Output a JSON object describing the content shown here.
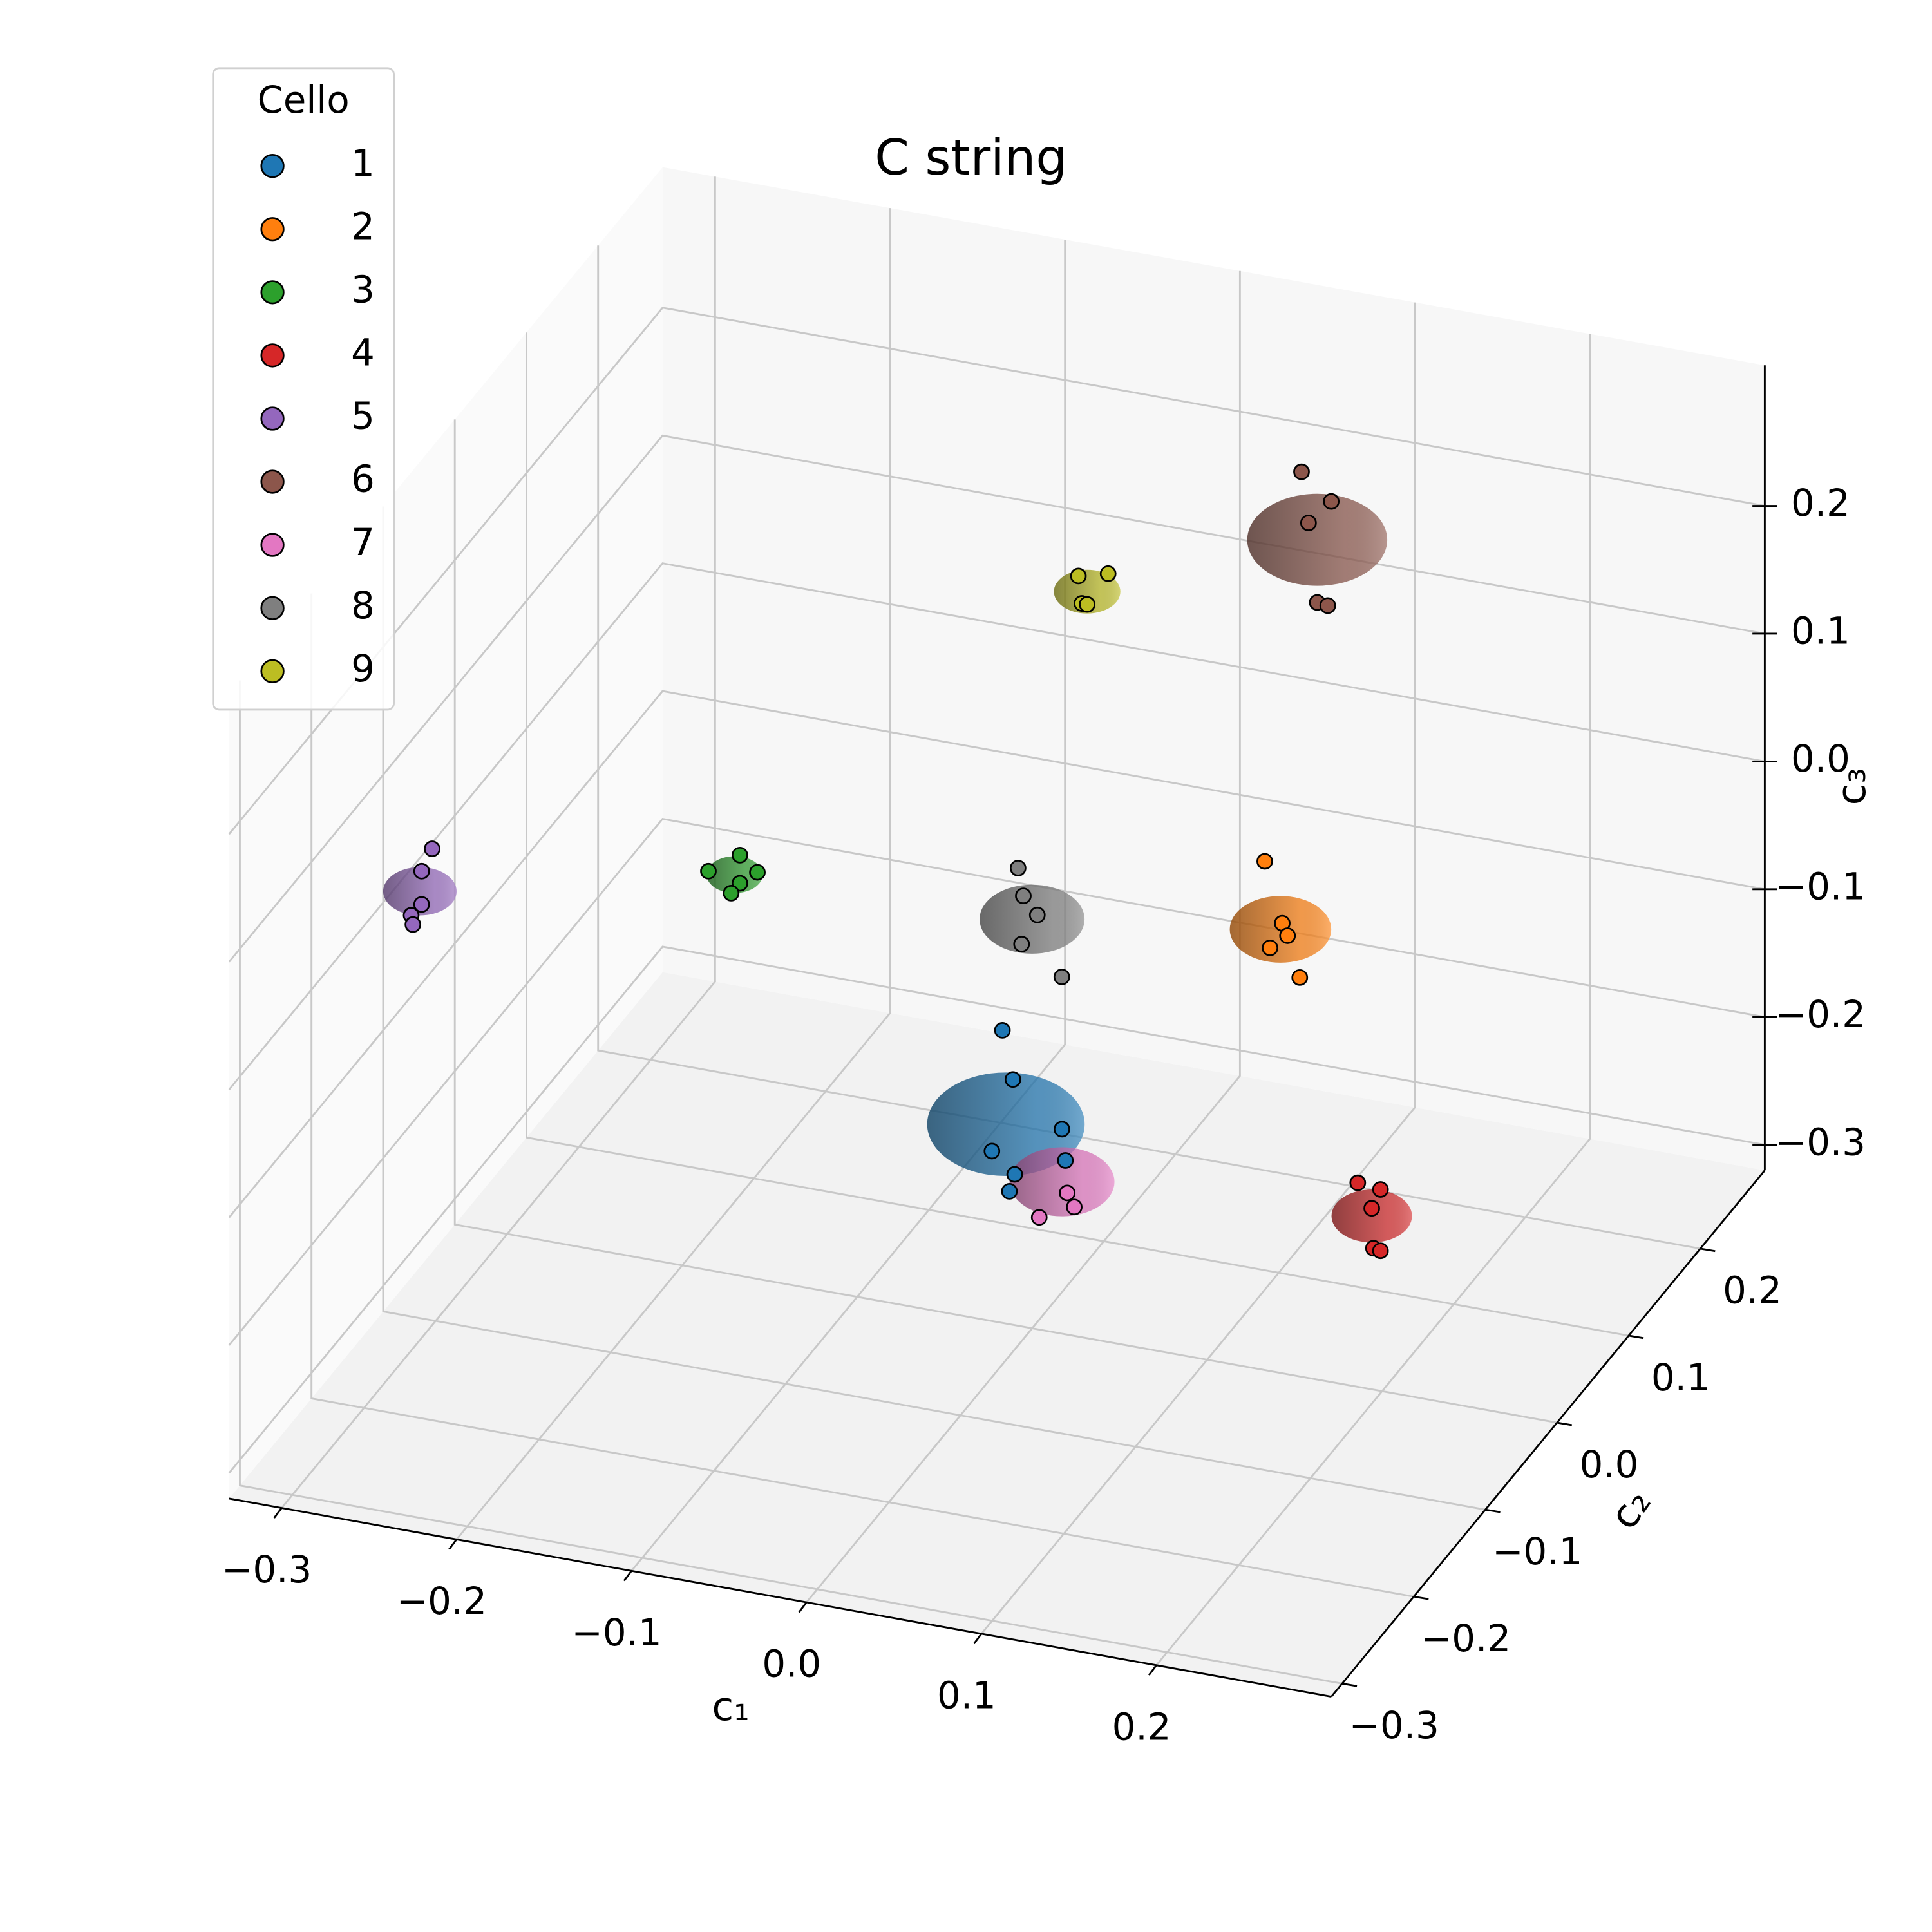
{
  "chart_data": {
    "type": "scatter3d",
    "title": "C string",
    "legend_title": "Cello",
    "legend": "upper left",
    "grid": true,
    "xlabel": "c₁",
    "ylabel": "c₂",
    "zlabel": "c₃",
    "xlim": [
      -0.33,
      0.3
    ],
    "ylim": [
      -0.315,
      0.29
    ],
    "zlim": [
      -0.32,
      0.31
    ],
    "xticks": [
      {
        "value": -0.3,
        "label": "−0.3"
      },
      {
        "value": -0.2,
        "label": "−0.2"
      },
      {
        "value": -0.1,
        "label": "−0.1"
      },
      {
        "value": 0.0,
        "label": "0.0"
      },
      0.1,
      0.2
    ],
    "yticks": [
      {
        "value": -0.3,
        "label": "−0.3"
      },
      {
        "value": -0.2,
        "label": "−0.2"
      },
      {
        "value": -0.1,
        "label": "−0.1"
      },
      {
        "value": 0.0,
        "label": "0.0"
      },
      0.1,
      0.2
    ],
    "zticks": [
      {
        "value": -0.3,
        "label": "−0.3"
      },
      {
        "value": -0.2,
        "label": "−0.2"
      },
      {
        "value": -0.1,
        "label": "−0.1"
      },
      {
        "value": 0.0,
        "label": "0.0"
      },
      0.1,
      0.2
    ],
    "series": [
      {
        "name": "1",
        "color": "#1f77b4",
        "x": [
          -0.017,
          -0.011,
          0.017,
          -0.023,
          0.019,
          -0.01,
          -0.013
        ],
        "y": [
          0.0,
          0.0,
          0.0,
          0.0,
          0.0,
          0.0,
          0.0
        ],
        "z": [
          -0.091,
          -0.128,
          -0.16,
          -0.187,
          -0.184,
          -0.202,
          -0.216
        ],
        "center": [
          -0.015,
          0.0,
          -0.164
        ],
        "radius": 0.045
      },
      {
        "name": "2",
        "color": "#ff7f0e",
        "x": [
          0.092,
          0.102,
          0.105,
          0.095,
          0.112
        ],
        "y": [
          0.1,
          0.1,
          0.1,
          0.1,
          0.1
        ],
        "z": [
          0.0,
          -0.046,
          -0.055,
          -0.067,
          -0.086
        ],
        "center": [
          0.101,
          0.1,
          -0.051
        ],
        "radius": 0.029
      },
      {
        "name": "3",
        "color": "#2ca02c",
        "x": [
          -0.226,
          -0.208,
          -0.198,
          -0.208,
          -0.213
        ],
        "y": [
          0.1,
          0.1,
          0.1,
          0.1,
          0.1
        ],
        "z": [
          -0.086,
          -0.069,
          -0.08,
          -0.091,
          -0.1
        ],
        "center": [
          -0.211,
          0.1,
          -0.085
        ],
        "radius": 0.016
      },
      {
        "name": "4",
        "color": "#d62728",
        "x": [
          0.268,
          0.281,
          0.276,
          0.277,
          0.281
        ],
        "y": [
          -0.2,
          -0.2,
          -0.2,
          -0.2,
          -0.2
        ],
        "z": [
          -0.004,
          -0.006,
          -0.022,
          -0.053,
          -0.054
        ],
        "center": [
          0.276,
          -0.2,
          -0.028
        ],
        "radius": 0.023
      },
      {
        "name": "5",
        "color": "#9467bd",
        "x": [
          -0.302,
          -0.308,
          -0.308,
          -0.314,
          -0.313
        ],
        "y": [
          -0.1,
          -0.1,
          -0.1,
          -0.1,
          -0.1
        ],
        "z": [
          0.049,
          0.03,
          0.004,
          -0.006,
          -0.013
        ],
        "center": [
          -0.309,
          -0.1,
          0.014
        ],
        "radius": 0.021
      },
      {
        "name": "6",
        "color": "#8c564b",
        "x": [
          0.113,
          0.13,
          0.117,
          0.122,
          0.128
        ],
        "y": [
          0.1,
          0.1,
          0.1,
          0.1,
          0.1
        ],
        "z": [
          0.31,
          0.291,
          0.271,
          0.21,
          0.209
        ],
        "center": [
          0.122,
          0.1,
          0.259
        ],
        "radius": 0.04
      },
      {
        "name": "7",
        "color": "#e377c2",
        "x": [
          0.061,
          0.065,
          0.045
        ],
        "y": [
          -0.1,
          -0.1,
          -0.1
        ],
        "z": [
          -0.131,
          -0.141,
          -0.154
        ],
        "center": [
          0.058,
          -0.1,
          -0.123
        ],
        "radius": 0.03
      },
      {
        "name": "8",
        "color": "#7f7f7f",
        "x": [
          -0.049,
          -0.046,
          -0.038,
          -0.047,
          -0.024
        ],
        "y": [
          0.1,
          0.1,
          0.1,
          0.1,
          0.1
        ],
        "z": [
          -0.04,
          -0.061,
          -0.074,
          -0.099,
          -0.119
        ],
        "center": [
          -0.041,
          0.1,
          -0.078
        ],
        "radius": 0.03
      },
      {
        "name": "9",
        "color": "#bcbd22",
        "x": [
          -0.035,
          -0.018,
          -0.033,
          -0.03
        ],
        "y": [
          0.15,
          0.15,
          0.15,
          0.15
        ],
        "z": [
          0.158,
          0.164,
          0.137,
          0.137
        ],
        "center": [
          -0.03,
          0.15,
          0.147
        ],
        "radius": 0.019
      }
    ]
  }
}
